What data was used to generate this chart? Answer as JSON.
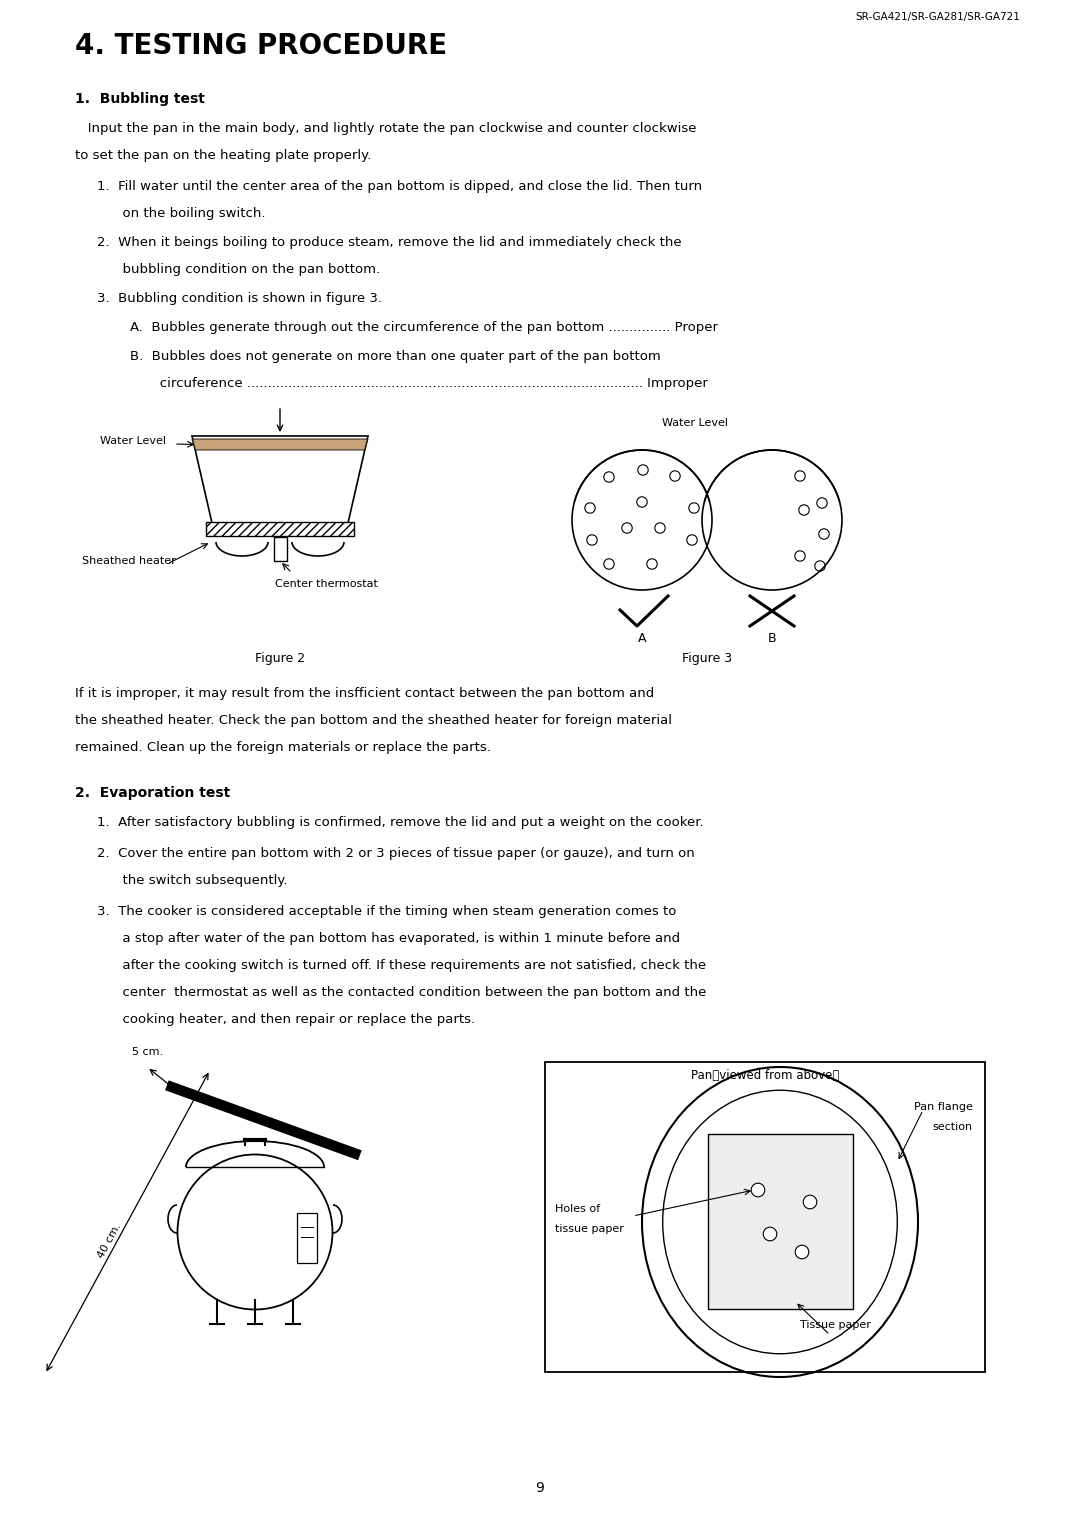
{
  "page_width": 10.8,
  "page_height": 15.27,
  "bg_color": "#ffffff",
  "header_text": "SR-GA421/SR-GA281/SR-GA721",
  "title": "4. TESTING PROCEDURE",
  "section1_heading": "1.  Bubbling test",
  "section1_intro": "   Input the pan in the main body, and lightly rotate the pan clockwise and counter clockwise\nto set the pan on the heating plate properly.",
  "section1_items": [
    "1.  Fill water until the center area of the pan bottom is dipped, and close the lid. Then turn\n      on the boiling switch.",
    "2.  When it beings boiling to produce steam, remove the lid and immediately check the\n      bubbling condition on the pan bottom.",
    "3.  Bubbling condition is shown in figure 3."
  ],
  "section1_sub_items": [
    "A.  Bubbles generate through out the circumference of the pan bottom ............... Proper",
    "B.  Bubbles does not generate on more than one quater part of the pan bottom\n       circuference ................................................................................................ Improper"
  ],
  "figure2_label": "Figure 2",
  "figure3_label": "Figure 3",
  "between_text": "If it is improper, it may result from the insfficient contact between the pan bottom and\nthe sheathed heater. Check the pan bottom and the sheathed heater for foreign material\nremained. Clean up the foreign materials or replace the parts.",
  "section2_heading": "2.  Evaporation test",
  "section2_items": [
    "1.  After satisfactory bubbling is confirmed, remove the lid and put a weight on the cooker.",
    "2.  Cover the entire pan bottom with 2 or 3 pieces of tissue paper (or gauze), and turn on\n      the switch subsequently.",
    "3.  The cooker is considered acceptable if the timing when steam generation comes to\n      a stop after water of the pan bottom has evaporated, is within 1 minute before and\n      after the cooking switch is turned off. If these requirements are not satisfied, check the\n      center  thermostat as well as the contacted condition between the pan bottom and the\n      cooking heater, and then repair or replace the parts."
  ],
  "fig5_title": "Pan（viewed from above）",
  "page_number": "9"
}
